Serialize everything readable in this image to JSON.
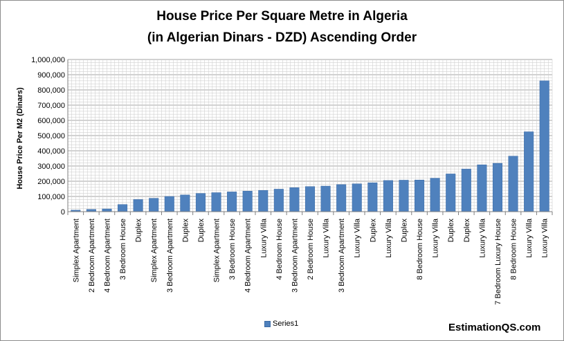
{
  "chart_data": {
    "type": "bar",
    "title": "House Price Per Square Metre in Algeria",
    "subtitle": "(in Algerian Dinars - DZD) Ascending Order",
    "xlabel": "",
    "ylabel": "House Price Per M2 (Dinars)",
    "ylim": [
      0,
      1000000
    ],
    "yticks": [
      "0",
      "100,000",
      "200,000",
      "300,000",
      "400,000",
      "500,000",
      "600,000",
      "700,000",
      "800,000",
      "900,000",
      "1,000,000"
    ],
    "grid": true,
    "legend_position": "bottom",
    "bar_color": "#4f81bd",
    "categories": [
      "Simplex Apartment",
      "2 Bedroom Apartment",
      "4 Bedroom Apartment",
      "3 Bedroom House",
      "Duplex",
      "Simplex Apartment",
      "3 Bedroom Apartment",
      "Duplex",
      "Duplex",
      "Simplex Apartment",
      "3 Bedroom House",
      "4 Bedroom Apartment",
      "Luxury Villa",
      "4 Bedroom House",
      "3 Bedroom Apartment",
      "2 Bedroom House",
      "Luxury Villa",
      "3 Bedroom Apartment",
      "Luxury Villa",
      "Duplex",
      "Luxury Villa",
      "Duplex",
      "8 Bedroom House",
      "Luxury Villa",
      "Duplex",
      "Duplex",
      "Luxury Villa",
      "7 Bedroom Luxury House",
      "8 Bedroom House",
      "Luxury Villa",
      "Luxury Villa"
    ],
    "series": [
      {
        "name": "Series1",
        "values": [
          10000,
          15000,
          18000,
          47000,
          80000,
          88000,
          100000,
          110000,
          120000,
          125000,
          130000,
          135000,
          140000,
          148000,
          158000,
          165000,
          168000,
          178000,
          183000,
          190000,
          205000,
          207000,
          208000,
          220000,
          248000,
          280000,
          308000,
          318000,
          365000,
          525000,
          860000
        ]
      }
    ]
  },
  "watermark": "EstimationQS.com"
}
